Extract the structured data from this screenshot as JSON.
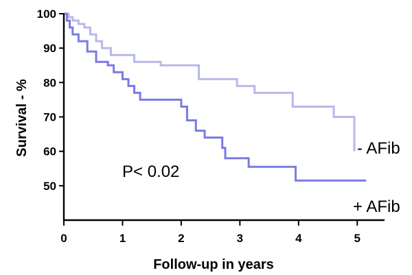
{
  "chart_data": {
    "type": "line",
    "title": "",
    "xlabel": "Follow-up in years",
    "ylabel": "Survival - %",
    "xlim": [
      0,
      5.5
    ],
    "ylim": [
      40,
      100
    ],
    "xticks": [
      0,
      1,
      2,
      3,
      4,
      5
    ],
    "yticks": [
      50,
      60,
      70,
      80,
      90,
      100
    ],
    "grid": false,
    "annotation": "P< 0.02",
    "series": [
      {
        "name": "- AFib",
        "color": "#b8b8ec",
        "step": true,
        "x": [
          0,
          0.08,
          0.15,
          0.25,
          0.35,
          0.45,
          0.55,
          0.65,
          0.8,
          1.2,
          1.65,
          2.3,
          2.95,
          3.25,
          3.9,
          4.6,
          4.95
        ],
        "y": [
          100,
          99,
          98,
          97,
          96,
          94,
          92,
          90,
          88,
          86,
          85,
          81,
          79,
          77,
          73,
          70,
          60
        ]
      },
      {
        "name": "+ AFib",
        "color": "#7a7ae6",
        "step": true,
        "x": [
          0,
          0.05,
          0.1,
          0.15,
          0.25,
          0.4,
          0.55,
          0.75,
          0.85,
          1.0,
          1.1,
          1.2,
          1.3,
          2.0,
          2.1,
          2.25,
          2.4,
          2.7,
          2.75,
          3.15,
          3.95,
          5.15
        ],
        "y": [
          100,
          98,
          96,
          94,
          92,
          89,
          86,
          85,
          83,
          81,
          79,
          77,
          75,
          73,
          69,
          66,
          64,
          61,
          58,
          55.5,
          51.5,
          51.5
        ]
      }
    ]
  }
}
